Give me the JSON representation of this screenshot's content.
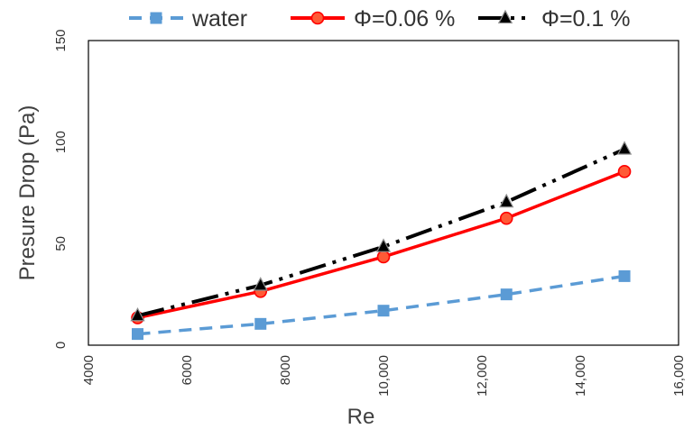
{
  "chart_data": {
    "type": "line",
    "xlabel": "Re",
    "ylabel": "Presure  Drop (Pa)",
    "xlim": [
      4000,
      16000
    ],
    "ylim": [
      0,
      150
    ],
    "x_ticks": [
      4000,
      6000,
      8000,
      10000,
      12000,
      14000,
      16000
    ],
    "x_tick_labels": [
      "4000",
      "6000",
      "8000",
      "10,000",
      "12,000",
      "14,000",
      "16,000"
    ],
    "y_ticks": [
      0,
      50,
      100,
      150
    ],
    "y_tick_labels": [
      "0",
      "50",
      "100",
      "150"
    ],
    "grid": false,
    "legend_position": "top",
    "series": [
      {
        "name": "water",
        "color": "#5b9bd5",
        "line_style": "dashed",
        "marker": "square",
        "x": [
          5000,
          7500,
          10000,
          12500,
          14900
        ],
        "y": [
          5.5,
          10.5,
          17,
          25,
          34
        ]
      },
      {
        "name": "Φ=0.06 %",
        "color": "#ff0000",
        "line_style": "solid",
        "marker": "circle",
        "x": [
          5000,
          7500,
          10000,
          12500,
          14900
        ],
        "y": [
          13.5,
          26.5,
          43.5,
          62.5,
          85.5
        ]
      },
      {
        "name": "Φ=0.1 %",
        "color": "#000000",
        "line_style": "dash-dot-dot",
        "marker": "triangle",
        "x": [
          5000,
          7500,
          10000,
          12500,
          14900
        ],
        "y": [
          14.5,
          29.5,
          48.5,
          70.5,
          96.5
        ]
      }
    ]
  }
}
